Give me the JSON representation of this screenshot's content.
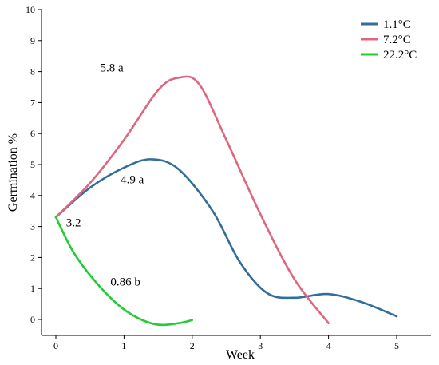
{
  "chart_data": {
    "type": "line",
    "xlabel": "Week",
    "ylabel": "Germination %",
    "xlim": [
      0,
      5
    ],
    "ylim": [
      0,
      10
    ],
    "x_ticks": [
      0,
      1,
      2,
      3,
      4,
      5
    ],
    "y_ticks": [
      0,
      1,
      2,
      3,
      4,
      5,
      6,
      7,
      8,
      9,
      10
    ],
    "grid": false,
    "legend_position": "top-right",
    "series": [
      {
        "name": "1.1°C",
        "color": "#336e9b",
        "points": [
          [
            0,
            3.3
          ],
          [
            0.5,
            4.25
          ],
          [
            1,
            4.9
          ],
          [
            1.4,
            5.17
          ],
          [
            1.8,
            4.85
          ],
          [
            2.3,
            3.5
          ],
          [
            2.7,
            1.85
          ],
          [
            3.1,
            0.85
          ],
          [
            3.5,
            0.7
          ],
          [
            4,
            0.82
          ],
          [
            4.5,
            0.55
          ],
          [
            5,
            0.1
          ]
        ]
      },
      {
        "name": "7.2°C",
        "color": "#e0667f",
        "points": [
          [
            0,
            3.3
          ],
          [
            0.5,
            4.4
          ],
          [
            1,
            5.8
          ],
          [
            1.5,
            7.4
          ],
          [
            1.8,
            7.8
          ],
          [
            2.1,
            7.6
          ],
          [
            2.5,
            5.8
          ],
          [
            3,
            3.4
          ],
          [
            3.5,
            1.3
          ],
          [
            4,
            -0.12
          ]
        ]
      },
      {
        "name": "22.2°C",
        "color": "#22cc33",
        "points": [
          [
            0,
            3.3
          ],
          [
            0.25,
            2.2
          ],
          [
            0.55,
            1.3
          ],
          [
            0.9,
            0.5
          ],
          [
            1.2,
            0.05
          ],
          [
            1.5,
            -0.17
          ],
          [
            1.8,
            -0.12
          ],
          [
            2,
            -0.02
          ]
        ]
      }
    ],
    "annotations": [
      {
        "text": "5.8 a",
        "x": 0.65,
        "y": 8.0
      },
      {
        "text": "4.9 a",
        "x": 0.95,
        "y": 4.4
      },
      {
        "text": "3.2",
        "x": 0.15,
        "y": 3.0
      },
      {
        "text": "0.86 b",
        "x": 0.8,
        "y": 1.1
      }
    ]
  }
}
